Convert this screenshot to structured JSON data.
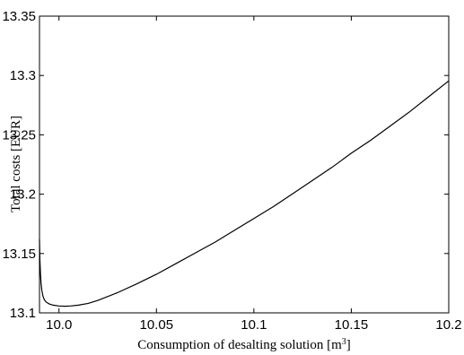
{
  "chart_data": {
    "type": "line",
    "title": "",
    "xlabel": "Consumption of desalting solution [m",
    "xlabel_superscript": "3",
    "xlabel_suffix": "]",
    "ylabel": "Total costs [EUR]",
    "xlim": [
      9.99,
      10.2
    ],
    "ylim": [
      13.1,
      13.35
    ],
    "xticks": [
      10.0,
      10.05,
      10.1,
      10.15,
      10.2
    ],
    "xtick_labels": [
      "10.0",
      "10.05",
      "10.1",
      "10.15",
      "10.2"
    ],
    "yticks": [
      13.1,
      13.15,
      13.2,
      13.25,
      13.3,
      13.35
    ],
    "ytick_labels": [
      "13.1",
      "13.15",
      "13.2",
      "13.25",
      "13.3",
      "13.35"
    ],
    "grid": false,
    "series": [
      {
        "name": "",
        "color": "#000000",
        "x": [
          9.99,
          9.9902,
          9.9905,
          9.9908,
          9.9912,
          9.9918,
          9.9925,
          9.9935,
          9.995,
          9.997,
          10.0,
          10.003,
          10.006,
          10.01,
          10.015,
          10.02,
          10.03,
          10.04,
          10.05,
          10.06,
          10.07,
          10.08,
          10.09,
          10.1,
          10.11,
          10.12,
          10.13,
          10.14,
          10.15,
          10.16,
          10.17,
          10.18,
          10.19,
          10.2
        ],
        "y": [
          13.162,
          13.145,
          13.133,
          13.125,
          13.119,
          13.114,
          13.111,
          13.109,
          13.1075,
          13.1065,
          13.1058,
          13.1056,
          13.1058,
          13.1065,
          13.108,
          13.1105,
          13.117,
          13.1245,
          13.1325,
          13.1415,
          13.1505,
          13.1595,
          13.1695,
          13.1795,
          13.1895,
          13.2005,
          13.2115,
          13.2225,
          13.2345,
          13.2455,
          13.2575,
          13.2695,
          13.2825,
          13.2955
        ]
      }
    ]
  }
}
